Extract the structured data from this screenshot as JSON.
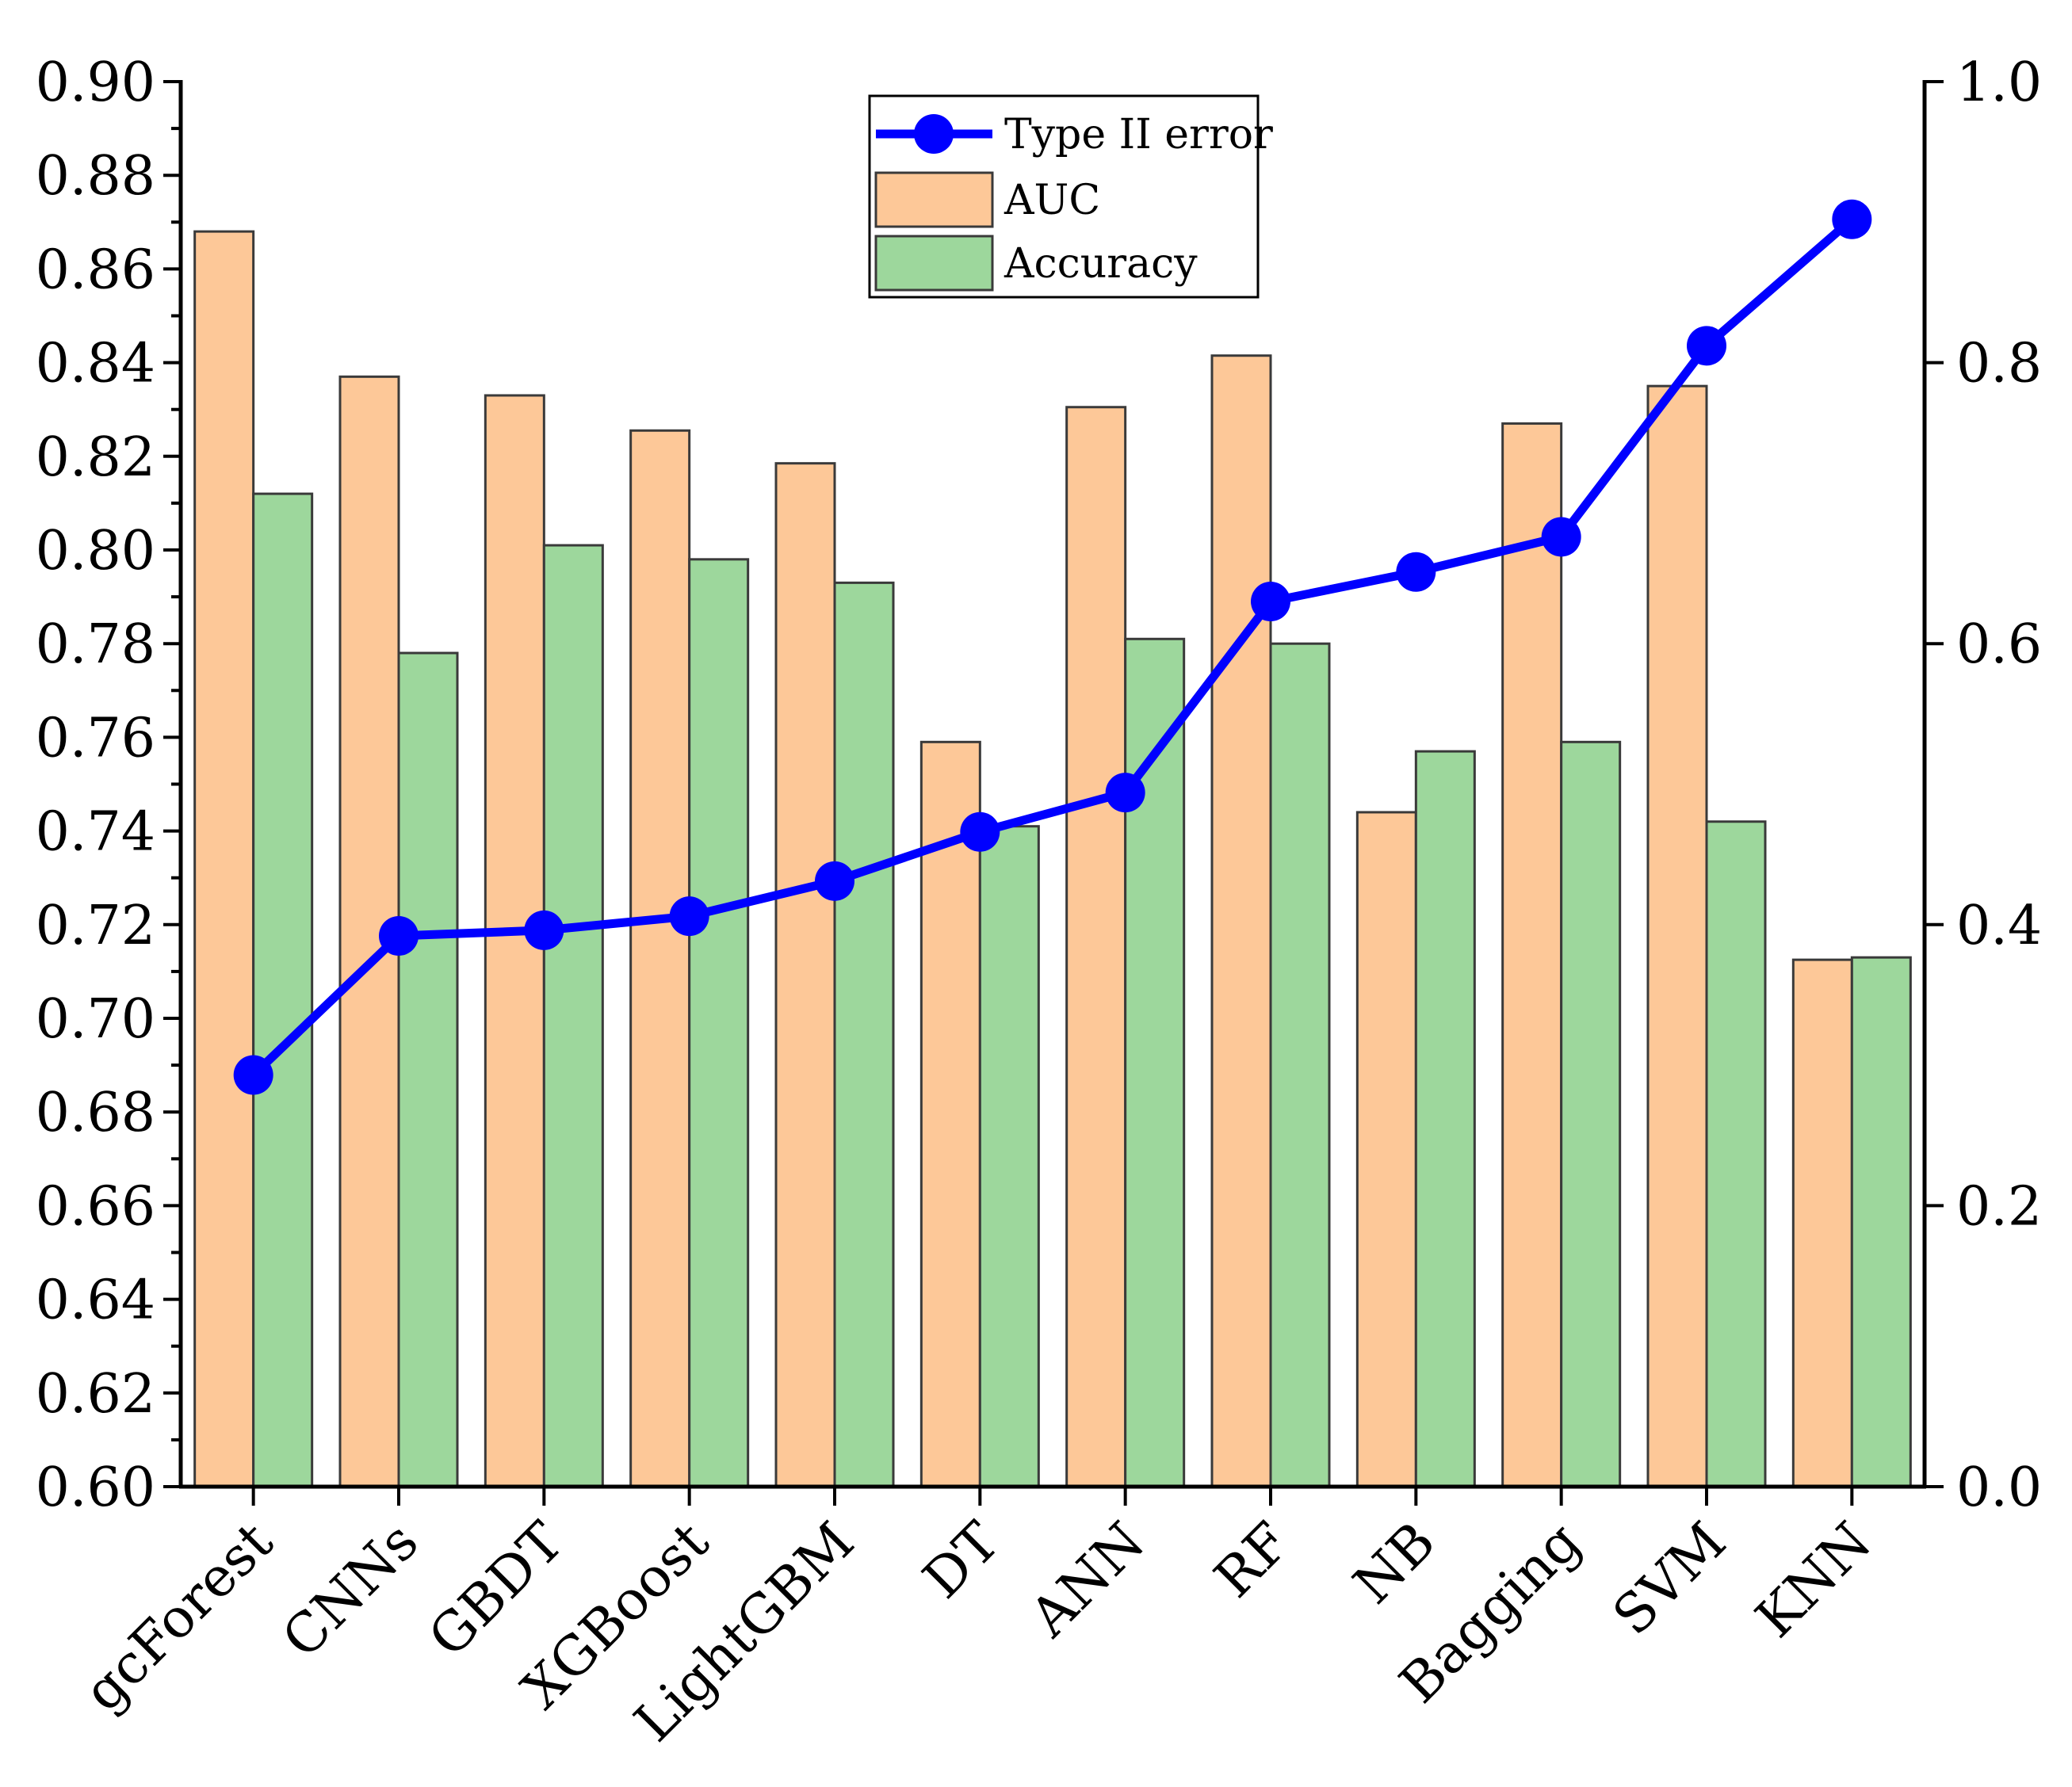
{
  "chart_data": {
    "type": "bar",
    "title": "",
    "xlabel": "",
    "ylabel": "",
    "y2label": "",
    "categories": [
      "gcForest",
      "CNNs",
      "GBDT",
      "XGBoost",
      "LightGBM",
      "DT",
      "ANN",
      "RF",
      "NB",
      "Bagging",
      "SVM",
      "KNN"
    ],
    "series": [
      {
        "name": "AUC",
        "kind": "bar",
        "axis": "left",
        "color": "#FDC898",
        "values": [
          0.868,
          0.837,
          0.833,
          0.8255,
          0.8185,
          0.759,
          0.8305,
          0.8415,
          0.744,
          0.827,
          0.835,
          0.7125
        ]
      },
      {
        "name": "Accuracy",
        "kind": "bar",
        "axis": "left",
        "color": "#9DD79C",
        "values": [
          0.812,
          0.778,
          0.801,
          0.798,
          0.793,
          0.741,
          0.781,
          0.78,
          0.757,
          0.759,
          0.742,
          0.713
        ]
      },
      {
        "name": "Type II error",
        "kind": "line",
        "axis": "right",
        "color": "#0000FF",
        "values": [
          0.293,
          0.392,
          0.396,
          0.406,
          0.431,
          0.466,
          0.494,
          0.63,
          0.651,
          0.676,
          0.812,
          0.902
        ]
      }
    ],
    "y_left": {
      "ylim": [
        0.6,
        0.9
      ],
      "ticks": [
        "0.60",
        "0.62",
        "0.64",
        "0.66",
        "0.68",
        "0.70",
        "0.72",
        "0.74",
        "0.76",
        "0.78",
        "0.80",
        "0.82",
        "0.84",
        "0.86",
        "0.88",
        "0.90"
      ]
    },
    "y_right": {
      "ylim": [
        0.0,
        1.0
      ],
      "ticks": [
        "0.0",
        "0.2",
        "0.4",
        "0.6",
        "0.8",
        "1.0"
      ]
    },
    "legend": {
      "placement": "top-center",
      "entries": [
        "Type II error",
        "AUC",
        "Accuracy"
      ]
    },
    "grid": false
  }
}
